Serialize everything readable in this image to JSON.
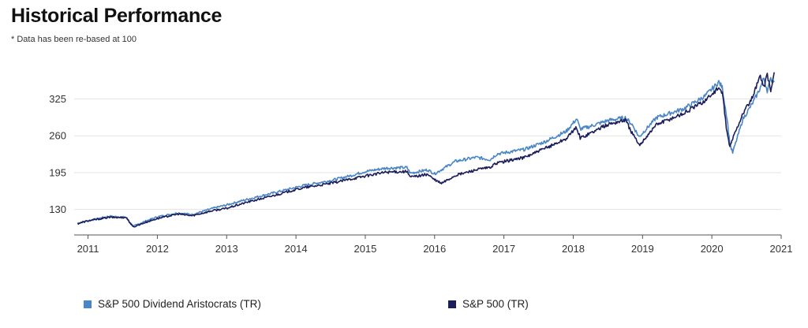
{
  "title": "Historical Performance",
  "subtitle": "* Data has been re-based at 100",
  "chart_data": {
    "type": "line",
    "title": "Historical Performance",
    "subtitle": "* Data has been re-based at 100",
    "xlabel": "",
    "ylabel": "",
    "xlim": [
      2010.8,
      2021.0
    ],
    "ylim": [
      85,
      380
    ],
    "yticks": [
      130,
      195,
      260,
      325
    ],
    "xticks": [
      "2011",
      "2012",
      "2013",
      "2014",
      "2015",
      "2016",
      "2017",
      "2018",
      "2019",
      "2020",
      "2021"
    ],
    "grid": true,
    "legend_position": "bottom",
    "series": [
      {
        "name": "S&P 500 Dividend Aristocrats (TR)",
        "color": "#4A86C5",
        "x": [
          2010.85,
          2011.0,
          2011.3,
          2011.55,
          2011.65,
          2011.8,
          2012.0,
          2012.3,
          2012.5,
          2012.8,
          2013.0,
          2013.3,
          2013.6,
          2013.9,
          2014.1,
          2014.5,
          2014.8,
          2015.0,
          2015.3,
          2015.6,
          2015.65,
          2015.9,
          2016.0,
          2016.3,
          2016.6,
          2016.8,
          2016.9,
          2017.3,
          2017.6,
          2017.9,
          2018.05,
          2018.1,
          2018.2,
          2018.5,
          2018.75,
          2018.85,
          2018.95,
          2019.2,
          2019.6,
          2019.9,
          2020.1,
          2020.15,
          2020.22,
          2020.26,
          2020.3,
          2020.45,
          2020.6,
          2020.7,
          2020.75,
          2020.8,
          2020.85,
          2020.9
        ],
        "y": [
          106,
          110,
          118,
          116,
          100,
          108,
          117,
          124,
          121,
          132,
          138,
          148,
          157,
          166,
          172,
          181,
          190,
          197,
          203,
          204,
          194,
          200,
          193,
          215,
          222,
          218,
          228,
          236,
          250,
          268,
          290,
          272,
          275,
          287,
          292,
          280,
          258,
          292,
          308,
          330,
          355,
          345,
          290,
          245,
          230,
          290,
          320,
          345,
          362,
          340,
          360,
          355
        ]
      },
      {
        "name": "S&P 500 (TR)",
        "color": "#1C1E5C",
        "x": [
          2010.85,
          2011.0,
          2011.3,
          2011.55,
          2011.65,
          2011.8,
          2012.0,
          2012.3,
          2012.5,
          2012.8,
          2013.0,
          2013.3,
          2013.6,
          2013.9,
          2014.1,
          2014.5,
          2014.8,
          2015.0,
          2015.3,
          2015.6,
          2015.65,
          2015.9,
          2016.0,
          2016.1,
          2016.3,
          2016.6,
          2016.8,
          2016.9,
          2017.3,
          2017.6,
          2017.9,
          2018.05,
          2018.1,
          2018.2,
          2018.5,
          2018.75,
          2018.85,
          2018.95,
          2019.2,
          2019.6,
          2019.9,
          2020.1,
          2020.15,
          2020.22,
          2020.26,
          2020.3,
          2020.45,
          2020.6,
          2020.65,
          2020.7,
          2020.75,
          2020.8,
          2020.85,
          2020.9
        ],
        "y": [
          105,
          110,
          116,
          116,
          99,
          106,
          114,
          122,
          119,
          128,
          132,
          143,
          152,
          162,
          168,
          176,
          184,
          189,
          196,
          197,
          187,
          192,
          182,
          176,
          190,
          200,
          204,
          212,
          222,
          238,
          255,
          275,
          256,
          262,
          280,
          288,
          265,
          243,
          280,
          300,
          322,
          345,
          335,
          265,
          240,
          255,
          300,
          330,
          350,
          368,
          345,
          370,
          338,
          372
        ]
      }
    ]
  }
}
